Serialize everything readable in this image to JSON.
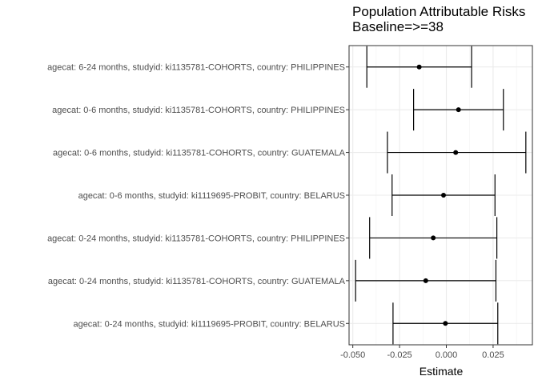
{
  "chart_data": {
    "type": "forest",
    "title": "Population Attributable Risks",
    "subtitle": "Baseline=>=38",
    "xlabel": "Estimate",
    "ylabel": "",
    "xlim": [
      -0.052,
      0.046
    ],
    "x_ticks": [
      -0.05,
      -0.025,
      0.0,
      0.025
    ],
    "x_tick_labels": [
      "-0.050",
      "-0.025",
      "0.000",
      "0.025"
    ],
    "grid": true,
    "theme": "bw",
    "rows": [
      {
        "label": "agecat: 6-24 months, studyid: ki1135781-COHORTS, country: PHILIPPINES",
        "estimate": -0.0145,
        "lower": -0.0425,
        "upper": 0.0135
      },
      {
        "label": "agecat: 0-6 months, studyid: ki1135781-COHORTS, country: PHILIPPINES",
        "estimate": 0.0065,
        "lower": -0.0175,
        "upper": 0.0305
      },
      {
        "label": "agecat: 0-6 months, studyid: ki1135781-COHORTS, country: GUATEMALA",
        "estimate": 0.005,
        "lower": -0.0315,
        "upper": 0.0425
      },
      {
        "label": "agecat: 0-6 months, studyid: ki1119695-PROBIT, country: BELARUS",
        "estimate": -0.0015,
        "lower": -0.029,
        "upper": 0.026
      },
      {
        "label": "agecat: 0-24 months, studyid: ki1135781-COHORTS, country: PHILIPPINES",
        "estimate": -0.007,
        "lower": -0.041,
        "upper": 0.027
      },
      {
        "label": "agecat: 0-24 months, studyid: ki1135781-COHORTS, country: GUATEMALA",
        "estimate": -0.011,
        "lower": -0.0485,
        "upper": 0.0265
      },
      {
        "label": "agecat: 0-24 months, studyid: ki1119695-PROBIT, country: BELARUS",
        "estimate": -0.0005,
        "lower": -0.0285,
        "upper": 0.0275
      }
    ]
  }
}
